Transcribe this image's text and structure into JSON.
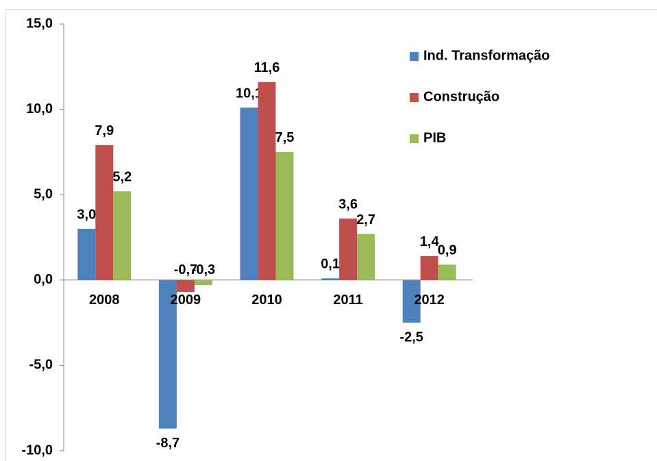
{
  "chart_data": {
    "type": "bar",
    "categories": [
      "2008",
      "2009",
      "2010",
      "2011",
      "2012"
    ],
    "series": [
      {
        "name": "Ind. Transformação",
        "color": "#4f81bd",
        "values": [
          3.0,
          -8.7,
          10.1,
          0.1,
          -2.5
        ],
        "value_labels": [
          "3,0",
          "-8,7",
          "10,1",
          "0,1",
          "-2,5"
        ]
      },
      {
        "name": "Construção",
        "color": "#c0504d",
        "values": [
          7.9,
          -0.7,
          11.6,
          3.6,
          1.4
        ],
        "value_labels": [
          "7,9",
          "-0,7",
          "11,6",
          "3,6",
          "1,4"
        ]
      },
      {
        "name": "PIB",
        "color": "#9bbb59",
        "values": [
          5.2,
          -0.3,
          7.5,
          2.7,
          0.9
        ],
        "value_labels": [
          "5,2",
          "-0,3",
          "7,5",
          "2,7",
          "0,9"
        ]
      }
    ],
    "ylim": [
      -10,
      15
    ],
    "yticks": [
      {
        "value": -10,
        "label": "-10,0"
      },
      {
        "value": -5,
        "label": "-5,0"
      },
      {
        "value": 0,
        "label": "0,0"
      },
      {
        "value": 5,
        "label": "5,0"
      },
      {
        "value": 10,
        "label": "10,0"
      },
      {
        "value": 15,
        "label": "15,0"
      }
    ],
    "legend": "right"
  }
}
